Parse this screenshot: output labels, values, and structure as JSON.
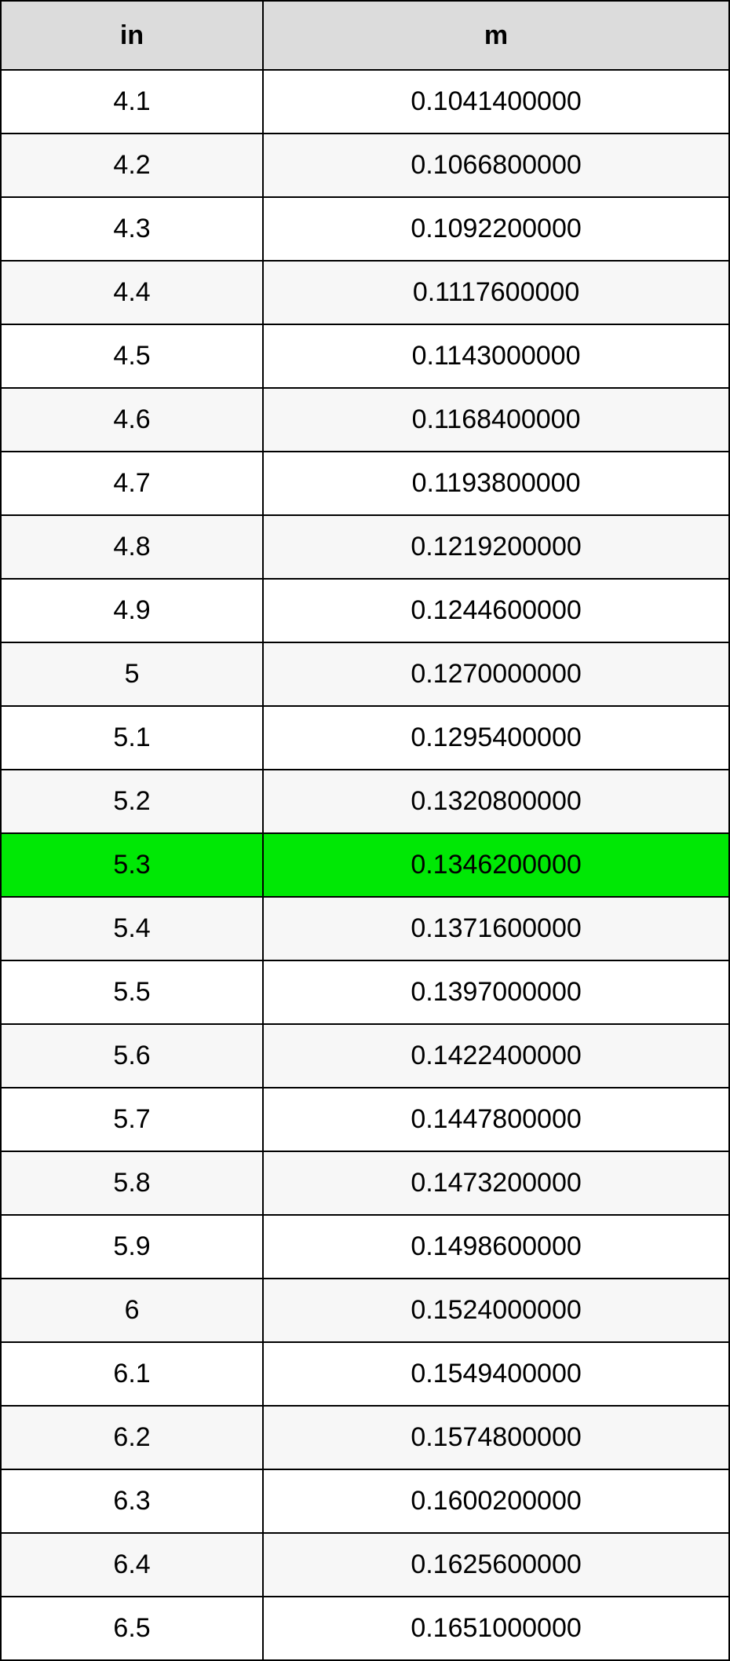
{
  "table": {
    "header_bg": "#dcdcdc",
    "row_odd_bg": "#ffffff",
    "row_even_bg": "#f7f7f7",
    "highlight_bg": "#00e805",
    "border_color": "#000000",
    "text_color": "#000000",
    "font_family": "Arial, Helvetica, sans-serif",
    "header_fontsize": 34,
    "cell_fontsize": 34,
    "columns": [
      {
        "key": "in",
        "label": "in",
        "width_pct": 36
      },
      {
        "key": "m",
        "label": "m",
        "width_pct": 64
      }
    ],
    "highlight_row_index": 12,
    "rows": [
      {
        "in": "4.1",
        "m": "0.1041400000"
      },
      {
        "in": "4.2",
        "m": "0.1066800000"
      },
      {
        "in": "4.3",
        "m": "0.1092200000"
      },
      {
        "in": "4.4",
        "m": "0.1117600000"
      },
      {
        "in": "4.5",
        "m": "0.1143000000"
      },
      {
        "in": "4.6",
        "m": "0.1168400000"
      },
      {
        "in": "4.7",
        "m": "0.1193800000"
      },
      {
        "in": "4.8",
        "m": "0.1219200000"
      },
      {
        "in": "4.9",
        "m": "0.1244600000"
      },
      {
        "in": "5",
        "m": "0.1270000000"
      },
      {
        "in": "5.1",
        "m": "0.1295400000"
      },
      {
        "in": "5.2",
        "m": "0.1320800000"
      },
      {
        "in": "5.3",
        "m": "0.1346200000"
      },
      {
        "in": "5.4",
        "m": "0.1371600000"
      },
      {
        "in": "5.5",
        "m": "0.1397000000"
      },
      {
        "in": "5.6",
        "m": "0.1422400000"
      },
      {
        "in": "5.7",
        "m": "0.1447800000"
      },
      {
        "in": "5.8",
        "m": "0.1473200000"
      },
      {
        "in": "5.9",
        "m": "0.1498600000"
      },
      {
        "in": "6",
        "m": "0.1524000000"
      },
      {
        "in": "6.1",
        "m": "0.1549400000"
      },
      {
        "in": "6.2",
        "m": "0.1574800000"
      },
      {
        "in": "6.3",
        "m": "0.1600200000"
      },
      {
        "in": "6.4",
        "m": "0.1625600000"
      },
      {
        "in": "6.5",
        "m": "0.1651000000"
      }
    ]
  }
}
